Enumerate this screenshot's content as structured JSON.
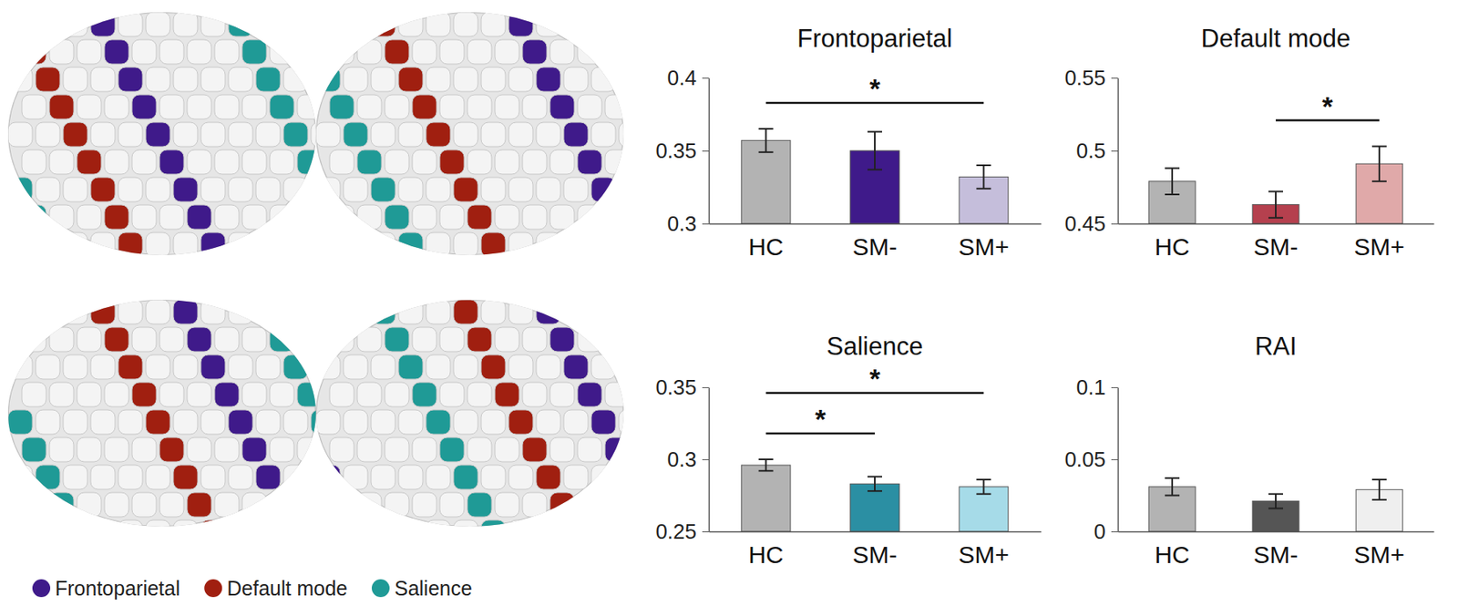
{
  "chart_data": [
    {
      "type": "bar",
      "title": "Frontoparietal",
      "categories": [
        "HC",
        "SM-",
        "SM+"
      ],
      "values": [
        0.357,
        0.35,
        0.332
      ],
      "errors": [
        0.008,
        0.013,
        0.008
      ],
      "colors": [
        "#b3b3b3",
        "#3f1a8a",
        "#c5bedb"
      ],
      "ylim": [
        0.3,
        0.4
      ],
      "yticks": [
        0.3,
        0.35,
        0.4
      ],
      "significance": [
        {
          "label": "*",
          "between": [
            "HC",
            "SM+"
          ]
        }
      ]
    },
    {
      "type": "bar",
      "title": "Default mode",
      "categories": [
        "HC",
        "SM-",
        "SM+"
      ],
      "values": [
        0.479,
        0.463,
        0.491
      ],
      "errors": [
        0.009,
        0.009,
        0.012
      ],
      "colors": [
        "#b3b3b3",
        "#b5404e",
        "#e0a9a9"
      ],
      "ylim": [
        0.45,
        0.55
      ],
      "yticks": [
        0.45,
        0.5,
        0.55
      ],
      "significance": [
        {
          "label": "*",
          "between": [
            "SM-",
            "SM+"
          ]
        }
      ]
    },
    {
      "type": "bar",
      "title": "Salience",
      "categories": [
        "HC",
        "SM-",
        "SM+"
      ],
      "values": [
        0.296,
        0.283,
        0.281
      ],
      "errors": [
        0.004,
        0.005,
        0.005
      ],
      "colors": [
        "#b3b3b3",
        "#2b8fa3",
        "#a6dbe8"
      ],
      "ylim": [
        0.25,
        0.35
      ],
      "yticks": [
        0.25,
        0.3,
        0.35
      ],
      "significance": [
        {
          "label": "*",
          "between": [
            "HC",
            "SM-"
          ]
        },
        {
          "label": "*",
          "between": [
            "HC",
            "SM+"
          ]
        }
      ]
    },
    {
      "type": "bar",
      "title": "RAI",
      "categories": [
        "HC",
        "SM-",
        "SM+"
      ],
      "values": [
        0.031,
        0.021,
        0.029
      ],
      "errors": [
        0.006,
        0.005,
        0.007
      ],
      "colors": [
        "#b3b3b3",
        "#555555",
        "#efefef"
      ],
      "ylim": [
        0,
        0.1
      ],
      "yticks": [
        0,
        0.05,
        0.1
      ],
      "significance": []
    }
  ],
  "brain_legend": [
    {
      "label": "Frontoparietal",
      "color": "#3f1a8a"
    },
    {
      "label": "Default mode",
      "color": "#a01f10"
    },
    {
      "label": "Salience",
      "color": "#1f9a96"
    }
  ]
}
